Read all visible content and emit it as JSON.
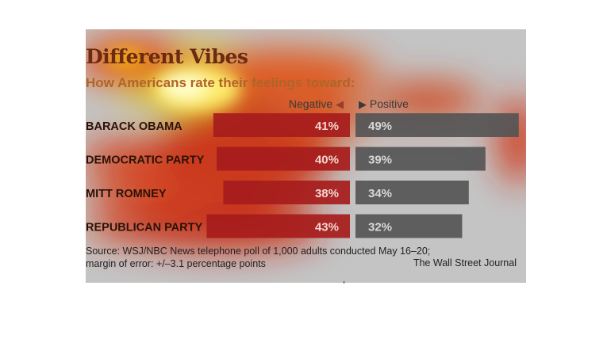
{
  "chart_data": {
    "type": "bar",
    "title": "Different Vibes",
    "subtitle": "How Americans rate their feelings toward:",
    "categories": [
      "BARACK OBAMA",
      "DEMOCRATIC PARTY",
      "MITT ROMNEY",
      "REPUBLICAN PARTY"
    ],
    "series": [
      {
        "name": "Negative",
        "values": [
          41,
          40,
          38,
          43
        ],
        "labels": [
          "41%",
          "40%",
          "38%",
          "43%"
        ],
        "color": "#a61c1c"
      },
      {
        "name": "Positive",
        "values": [
          49,
          39,
          34,
          32
        ],
        "labels": [
          "49%",
          "39%",
          "34%",
          "32%"
        ],
        "color": "#555555"
      }
    ],
    "legend": {
      "negative": "Negative",
      "positive": "Positive"
    },
    "source_line1": "Source: WSJ/NBC News telephone poll of 1,000 adults conducted May 16–20;",
    "source_line2": "margin of error: +/–3.1 percentage points",
    "credit": "The Wall Street Journal",
    "colors": {
      "negative": "#a61c1c",
      "positive": "#555555",
      "background": "#c4c4c4",
      "title": "#6b2a12"
    }
  }
}
